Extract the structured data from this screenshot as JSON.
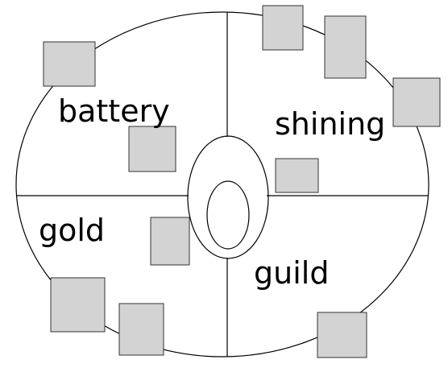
{
  "labels": {
    "top_left": "battery",
    "top_right": "shining",
    "bottom_left": "gold",
    "bottom_right": "guild"
  },
  "colors": {
    "square_fill": "#d3d3d3",
    "square_stroke": "#333333",
    "line": "#000000",
    "background": "#ffffff"
  }
}
